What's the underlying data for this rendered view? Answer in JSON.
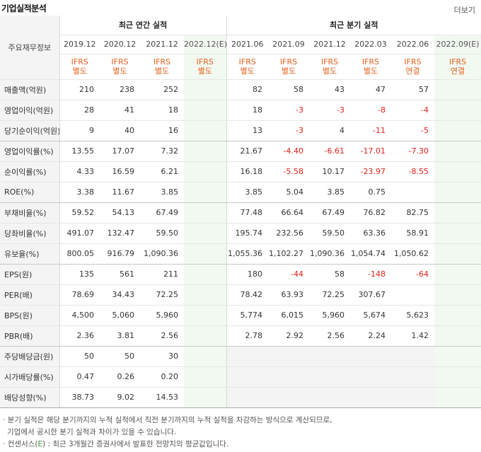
{
  "header": {
    "title": "기업실적분석",
    "more": "더보기"
  },
  "table": {
    "row_header_label": "주요재무정보",
    "annual_group": "최근 연간 실적",
    "quarter_group": "최근 분기 실적",
    "periods": [
      "2019.12",
      "2020.12",
      "2021.12",
      "2022.12(E)",
      "2021.06",
      "2021.09",
      "2021.12",
      "2022.03",
      "2022.06",
      "2022.09(E)"
    ],
    "ifrs_top": [
      "IFRS",
      "IFRS",
      "IFRS",
      "IFRS",
      "IFRS",
      "IFRS",
      "IFRS",
      "IFRS",
      "IFRS",
      "IFRS"
    ],
    "ifrs_bottom": [
      "별도",
      "별도",
      "별도",
      "별도",
      "별도",
      "별도",
      "별도",
      "별도",
      "연결",
      "연결"
    ],
    "rows": [
      {
        "label": "매출액(억원)",
        "values": [
          "210",
          "238",
          "252",
          "",
          "82",
          "58",
          "43",
          "47",
          "57",
          ""
        ]
      },
      {
        "label": "영업이익(억원)",
        "values": [
          "28",
          "41",
          "18",
          "",
          "18",
          "-3",
          "-3",
          "-8",
          "-4",
          ""
        ]
      },
      {
        "label": "당기순이익(억원)",
        "values": [
          "9",
          "40",
          "16",
          "",
          "13",
          "-3",
          "4",
          "-11",
          "-5",
          ""
        ]
      },
      {
        "label": "영업이익률(%)",
        "values": [
          "13.55",
          "17.07",
          "7.32",
          "",
          "21.67",
          "-4.40",
          "-6.61",
          "-17.01",
          "-7.30",
          ""
        ]
      },
      {
        "label": "순이익률(%)",
        "values": [
          "4.33",
          "16.59",
          "6.21",
          "",
          "16.18",
          "-5.58",
          "10.17",
          "-23.97",
          "-8.55",
          ""
        ]
      },
      {
        "label": "ROE(%)",
        "values": [
          "3.38",
          "11.67",
          "3.85",
          "",
          "3.85",
          "5.04",
          "3.85",
          "0.75",
          "",
          ""
        ]
      },
      {
        "label": "부채비율(%)",
        "values": [
          "59.52",
          "54.13",
          "67.49",
          "",
          "77.48",
          "66.64",
          "67.49",
          "76.82",
          "82.75",
          ""
        ]
      },
      {
        "label": "당좌비율(%)",
        "values": [
          "491.07",
          "132.47",
          "59.50",
          "",
          "195.74",
          "232.56",
          "59.50",
          "63.36",
          "58.91",
          ""
        ]
      },
      {
        "label": "유보율(%)",
        "values": [
          "800.05",
          "916.79",
          "1,090.36",
          "",
          "1,055.36",
          "1,102.27",
          "1,090.36",
          "1,054.74",
          "1,050.62",
          ""
        ]
      },
      {
        "label": "EPS(원)",
        "values": [
          "135",
          "561",
          "211",
          "",
          "180",
          "-44",
          "58",
          "-148",
          "-64",
          ""
        ]
      },
      {
        "label": "PER(배)",
        "values": [
          "78.69",
          "34.43",
          "72.25",
          "",
          "78.42",
          "63.93",
          "72.25",
          "307.67",
          "",
          ""
        ]
      },
      {
        "label": "BPS(원)",
        "values": [
          "4,500",
          "5,060",
          "5,960",
          "",
          "5,774",
          "6,015",
          "5,960",
          "5,674",
          "5,623",
          ""
        ]
      },
      {
        "label": "PBR(배)",
        "values": [
          "2.36",
          "3.81",
          "2.56",
          "",
          "2.78",
          "2.92",
          "2.56",
          "2.24",
          "1.42",
          ""
        ]
      },
      {
        "label": "주당배당금(원)",
        "values": [
          "50",
          "50",
          "30",
          "",
          "",
          "",
          "",
          "",
          "",
          ""
        ]
      },
      {
        "label": "시가배당률(%)",
        "values": [
          "0.47",
          "0.26",
          "0.20",
          "",
          "",
          "",
          "",
          "",
          "",
          ""
        ]
      },
      {
        "label": "배당성향(%)",
        "values": [
          "38.73",
          "9.02",
          "14.53",
          "",
          "",
          "",
          "",
          "",
          "",
          ""
        ]
      }
    ]
  },
  "notes": {
    "line1": "· 분기 실적은 해당 분기까지의 누적 실적에서 직전 분기까지의 누적 실적을 차감하는 방식으로 계산되므로,",
    "line2": "기업에서 공시한 분기 실적과 차이가 있을 수 있습니다.",
    "line3_pre": "· 컨센서스(",
    "line3_e": "E",
    "line3_post": ") : 최근 3개월간 증권사에서 발표한 전망치의 평균값입니다."
  },
  "colors": {
    "negative": "#e0201b",
    "ifrs": "#e8601c",
    "estimate_bg": "#f2f9f1",
    "label_bg": "#f4f4f4"
  }
}
